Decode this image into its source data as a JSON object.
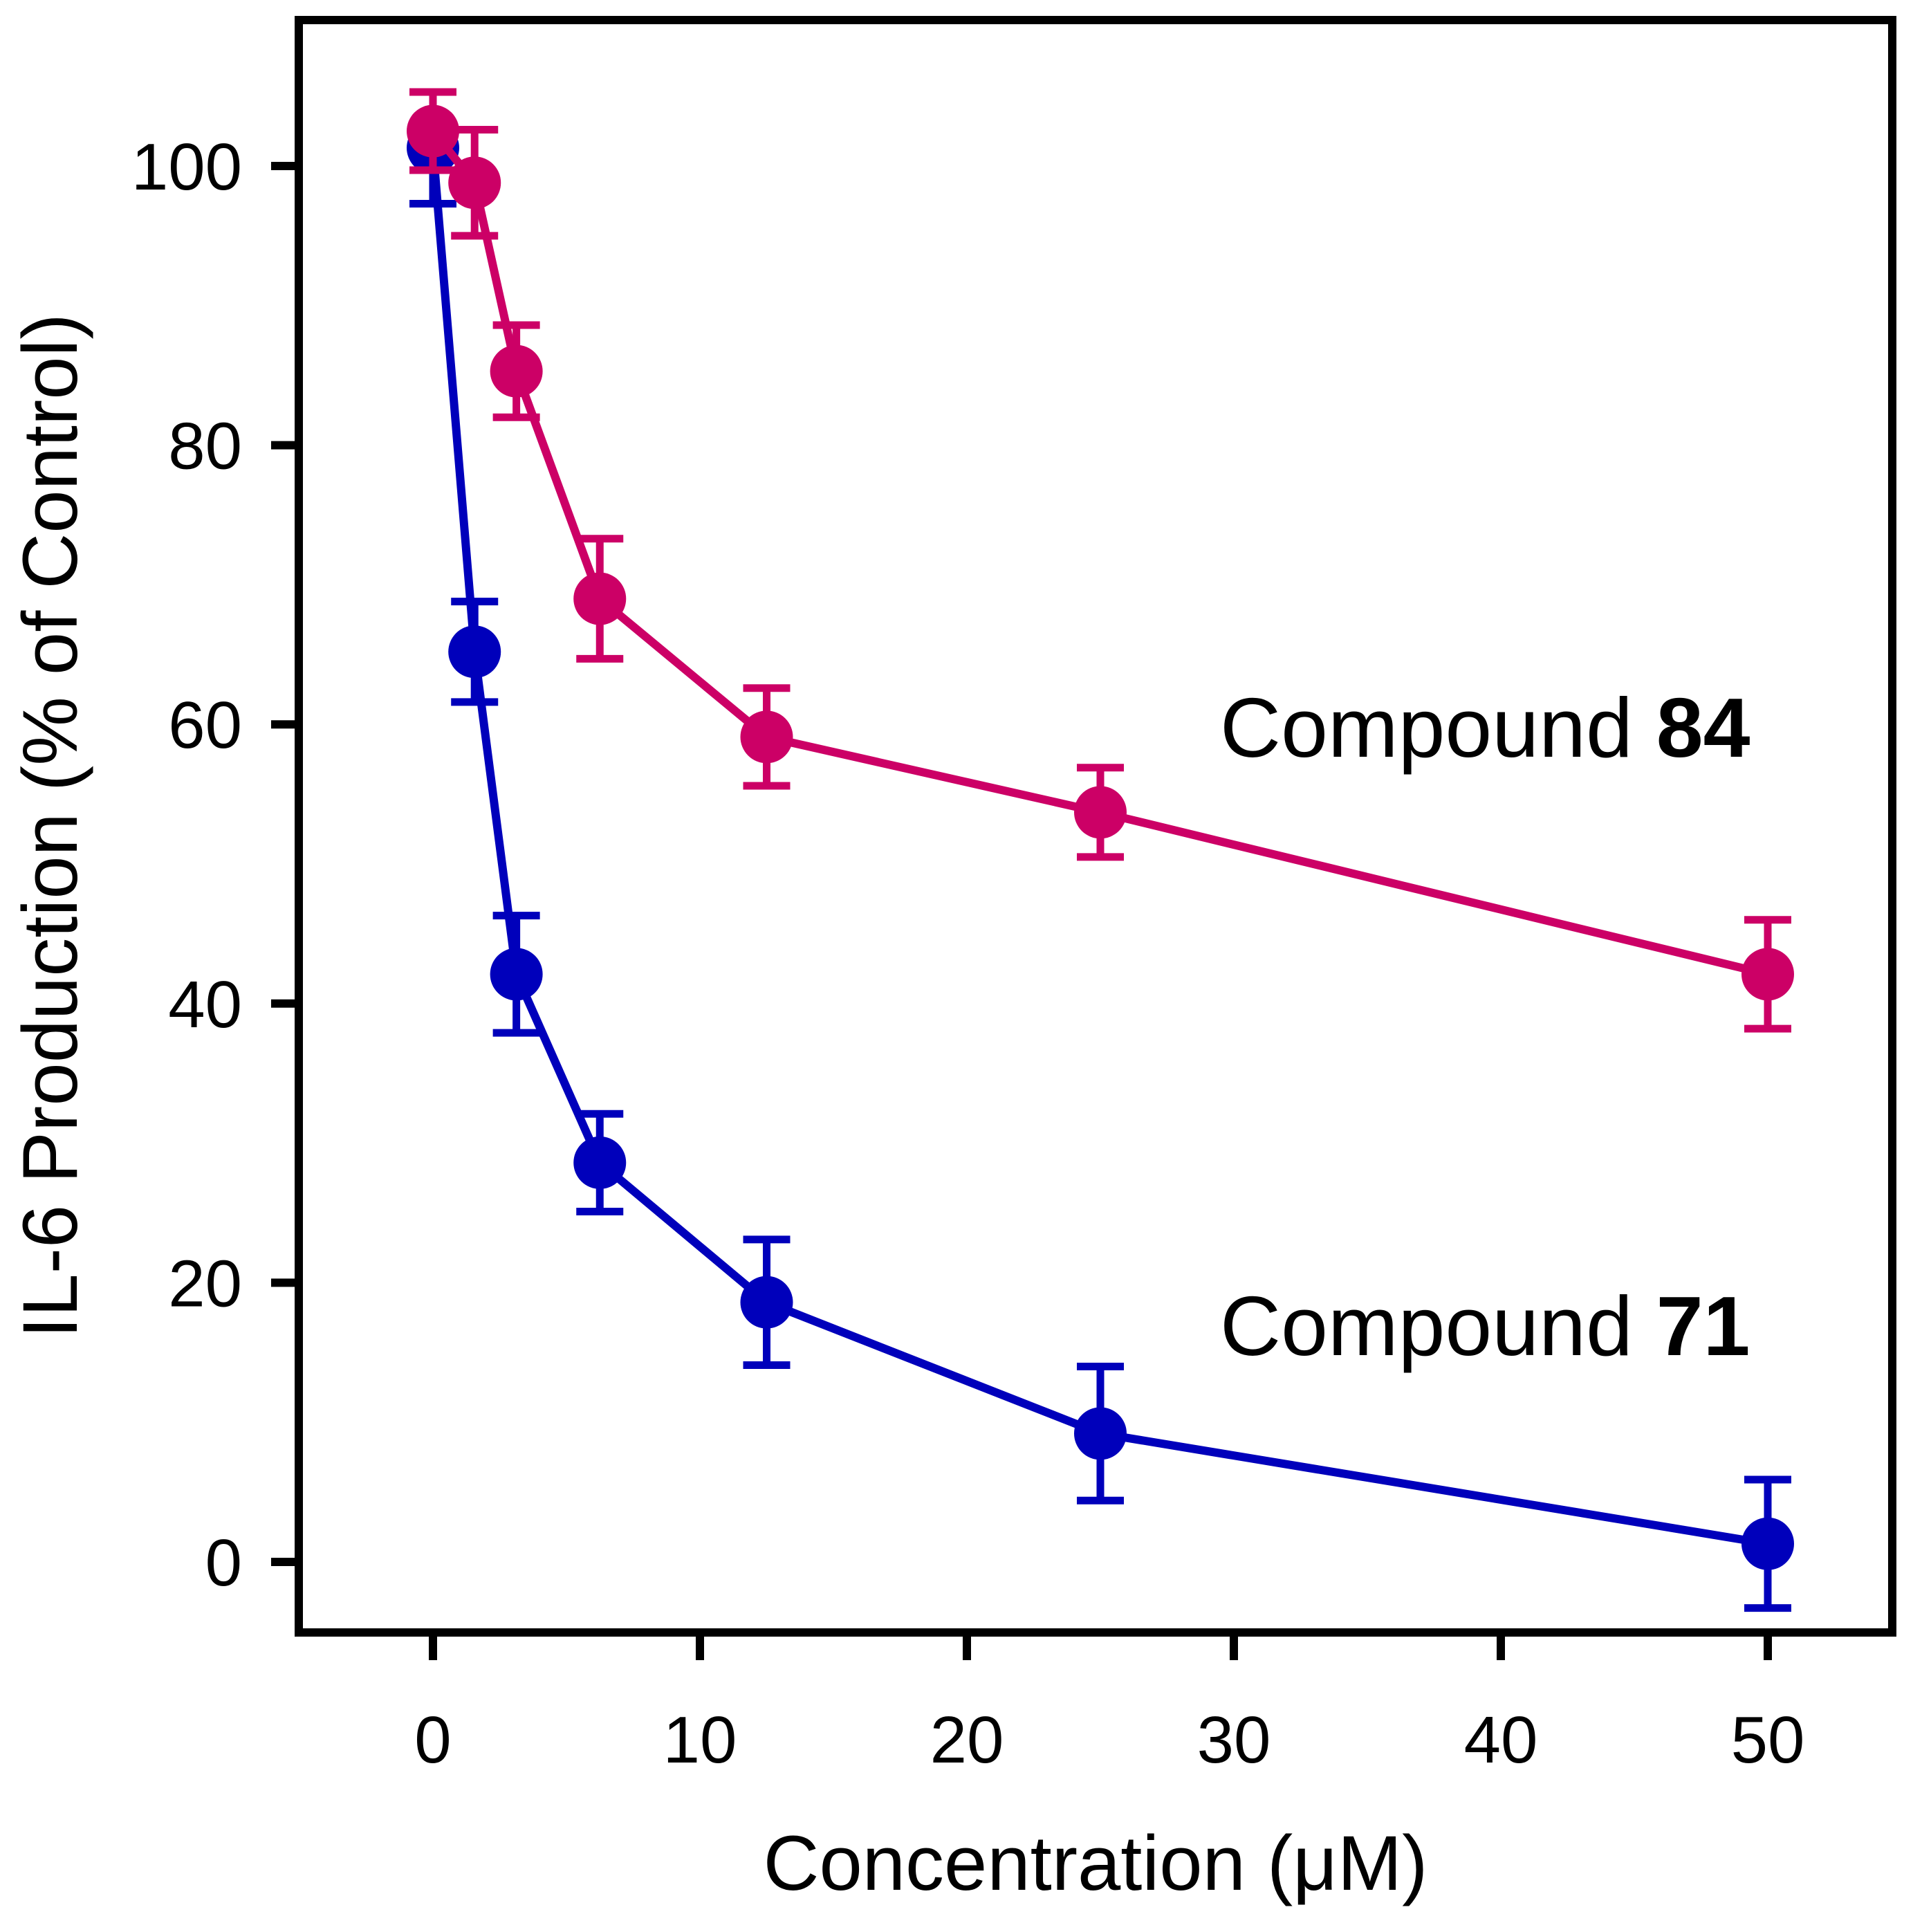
{
  "chart_data": {
    "type": "line",
    "title": "",
    "xlabel": "Concentration (μM)",
    "ylabel": "IL-6 Production (% of Control)",
    "xlim": [
      -5,
      55
    ],
    "ylim": [
      -5,
      110
    ],
    "xticks": [
      0,
      10,
      20,
      30,
      40,
      50
    ],
    "yticks": [
      0,
      20,
      40,
      60,
      80,
      100
    ],
    "grid": false,
    "series": [
      {
        "name": "Compound 84",
        "label_prefix": "Compound",
        "label_number": "84",
        "color": "#cc0066",
        "x": [
          0,
          1.56,
          3.125,
          6.25,
          12.5,
          25,
          50
        ],
        "y": [
          102.5,
          98.8,
          85.3,
          69.0,
          59.1,
          53.7,
          42.1
        ],
        "err": [
          2.8,
          3.8,
          3.3,
          4.3,
          3.5,
          3.2,
          3.9
        ]
      },
      {
        "name": "Compound 71",
        "label_prefix": "Compound",
        "label_number": "71",
        "color": "#0000bb",
        "x": [
          0,
          1.56,
          3.125,
          6.25,
          12.5,
          25,
          50
        ],
        "y": [
          101.3,
          65.2,
          42.1,
          28.6,
          18.6,
          9.2,
          1.3
        ],
        "err": [
          4.0,
          3.6,
          4.2,
          3.5,
          4.5,
          4.8,
          4.6
        ]
      }
    ]
  }
}
